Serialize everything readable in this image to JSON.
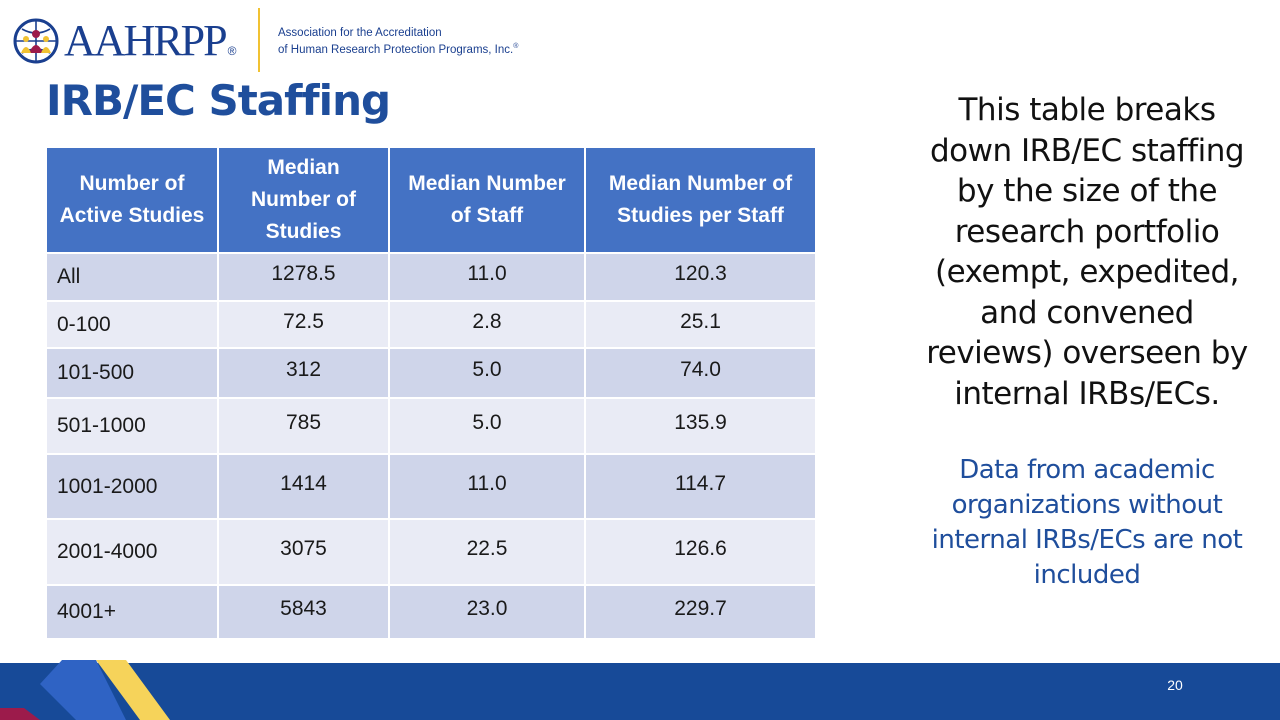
{
  "logo": {
    "wordmark": "AAHRPP",
    "registered": "®",
    "tagline_line1": "Association for the Accreditation",
    "tagline_line2": "of Human Research Protection Programs, Inc.",
    "tagline_mark": "®"
  },
  "title": "IRB/EC Staffing",
  "table": {
    "headers": [
      "Number of Active Studies",
      "Median Number of Studies",
      "Median Number of Staff",
      "Median Number of Studies per Staff"
    ],
    "rows": [
      [
        "All",
        "1278.5",
        "11.0",
        "120.3"
      ],
      [
        "0-100",
        "72.5",
        "2.8",
        "25.1"
      ],
      [
        "101-500",
        "312",
        "5.0",
        "74.0"
      ],
      [
        "501-1000",
        "785",
        "5.0",
        "135.9"
      ],
      [
        "1001-2000",
        "1414",
        "11.0",
        "114.7"
      ],
      [
        "2001-4000",
        "3075",
        "22.5",
        "126.6"
      ],
      [
        "4001+",
        "5843",
        "23.0",
        "229.7"
      ]
    ]
  },
  "description": "This table breaks down IRB/EC staffing by the size of the research portfolio (exempt, expedited, and convened reviews) overseen by internal IRBs/ECs.",
  "note": "Data from academic organizations without internal IRBs/ECs are not included",
  "page_number": "20",
  "colors": {
    "brand_blue": "#1f4e9c",
    "header_blue": "#4472c4",
    "row_dark": "#cfd5ea",
    "row_light": "#e9ebf5",
    "footer_navy": "#174a98",
    "accent_yellow": "#f6d35a",
    "accent_maroon": "#9c1b4b"
  }
}
